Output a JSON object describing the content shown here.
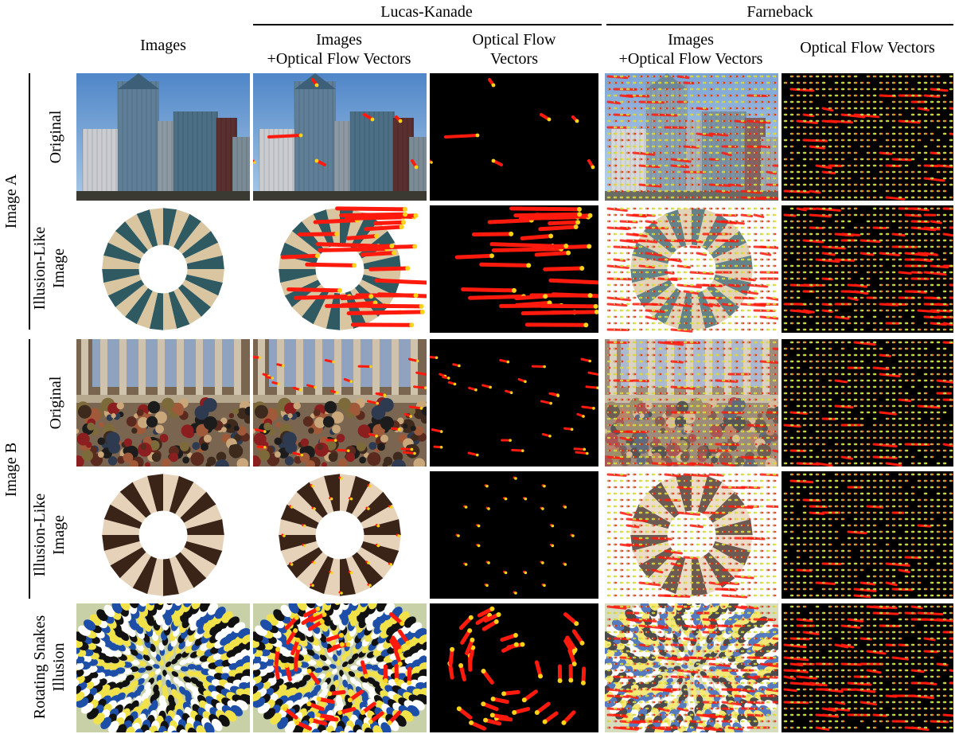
{
  "groups": {
    "lk": "Lucas-Kanade",
    "fb": "Farneback"
  },
  "columns": {
    "images": "Images",
    "lk_overlay": [
      "Images",
      "+Optical Flow Vectors"
    ],
    "lk_vectors": [
      "Optical Flow",
      "Vectors"
    ],
    "fb_overlay": [
      "Images",
      "+Optical Flow Vectors"
    ],
    "fb_vectors": "Optical Flow Vectors"
  },
  "sections": {
    "image_a": "Image A",
    "image_b": "Image B"
  },
  "rows": {
    "original": "Original",
    "illusion": [
      "Illusion-Like",
      "Image"
    ],
    "snakes": [
      "Rotating Snakes",
      "Illusion"
    ]
  },
  "colors": {
    "flow_red": "#ff1a0d",
    "flow_tip": "#ffd21a",
    "background": "#000000"
  }
}
